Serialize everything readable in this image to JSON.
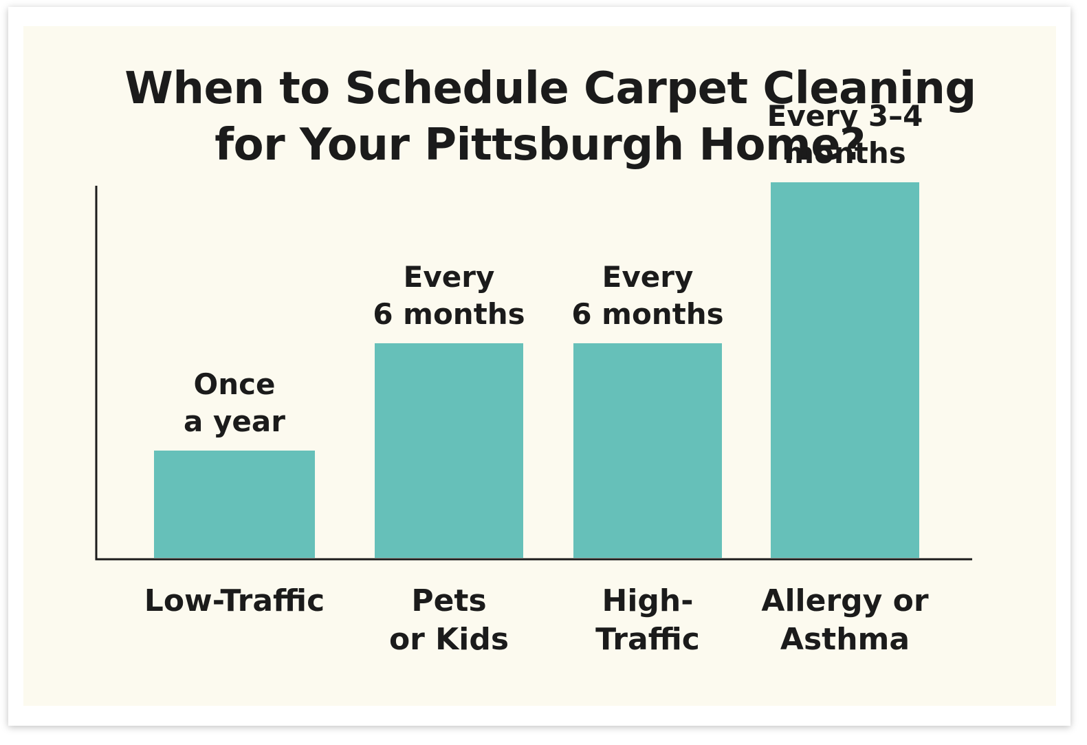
{
  "chart_data": {
    "type": "bar",
    "title_lines": [
      "When to Schedule Carpet Cleaning",
      "for Your Pittsburgh Home?"
    ],
    "categories": [
      [
        "Low-Traffic"
      ],
      [
        "Pets",
        "or Kids"
      ],
      [
        "High-",
        "Traffic"
      ],
      [
        "Allergy or",
        "Asthma"
      ]
    ],
    "value_labels": [
      [
        "Once",
        "a year"
      ],
      [
        "Every",
        "6 months"
      ],
      [
        "Every",
        "6 months"
      ],
      [
        "Every 3–4",
        "months"
      ]
    ],
    "cleanings_per_year": [
      1,
      2,
      2,
      3.5
    ],
    "bar_color": "#66c0b9",
    "background_color": "#fcfaef",
    "text_color": "#1b1b1b",
    "grid": false,
    "legend": "none"
  }
}
